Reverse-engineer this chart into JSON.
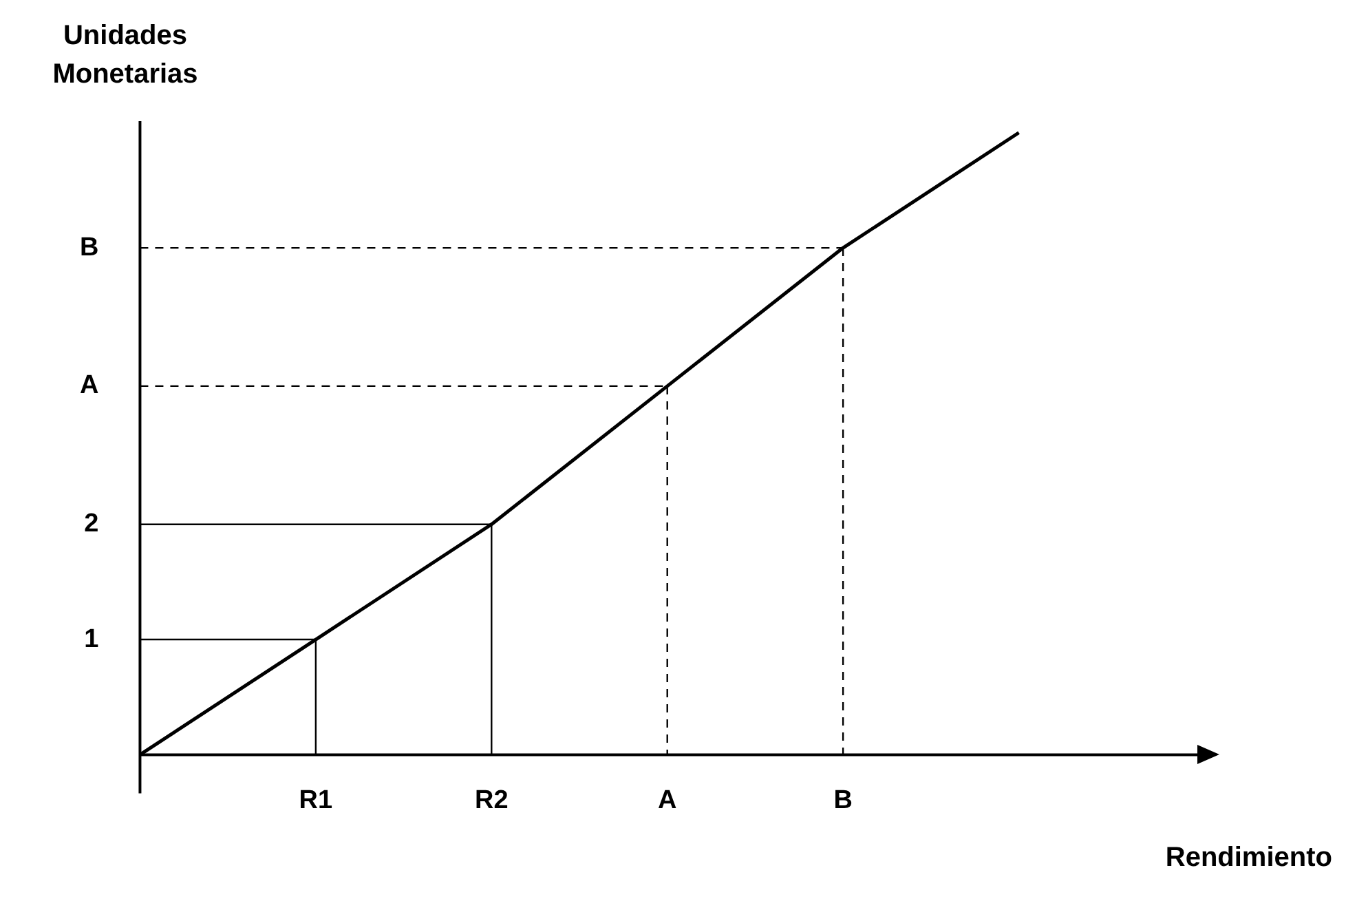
{
  "chart_data": {
    "type": "line",
    "xlabel": "Rendimiento",
    "ylabel": "Unidades Monetarias",
    "categories": [
      null,
      "R1",
      "R2",
      "A",
      "B",
      null,
      null
    ],
    "ylim": [
      0,
      5.5
    ],
    "yticks": [
      1,
      2,
      {
        "value": 3.2,
        "label": "A"
      },
      {
        "value": 4.4,
        "label": "B"
      }
    ],
    "grid": false,
    "marker": "none",
    "series": [
      {
        "color": "#000000",
        "values": [
          0,
          1,
          2,
          3.2,
          4.4,
          5.4,
          null
        ],
        "line_style": "solid"
      },
      {
        "color": "#000000",
        "values": [
          1,
          1,
          null,
          null,
          null,
          null,
          null
        ],
        "line_style": "solid"
      },
      {
        "color": "#000000",
        "x": [
          "R1",
          "R1"
        ],
        "values": [
          1,
          0
        ],
        "line_style": "solid"
      },
      {
        "color": "#000000",
        "values": [
          2,
          2,
          2,
          null,
          null,
          null,
          null
        ],
        "line_style": "solid"
      },
      {
        "color": "#000000",
        "x": [
          "R2",
          "R2"
        ],
        "values": [
          2,
          0
        ],
        "line_style": "solid"
      },
      {
        "color": "#000000",
        "values": [
          3.2,
          3.2,
          3.2,
          3.2,
          null,
          null,
          null
        ],
        "line_style": "dashed"
      },
      {
        "color": "#000000",
        "x": [
          "A",
          "A"
        ],
        "values": [
          3.2,
          0
        ],
        "line_style": "dashed"
      },
      {
        "color": "#000000",
        "values": [
          4.4,
          4.4,
          4.4,
          4.4,
          4.4,
          null,
          null
        ],
        "line_style": "dashed"
      },
      {
        "color": "#000000",
        "x": [
          "B",
          "B"
        ],
        "values": [
          4.4,
          0
        ],
        "line_style": "dashed"
      }
    ]
  }
}
